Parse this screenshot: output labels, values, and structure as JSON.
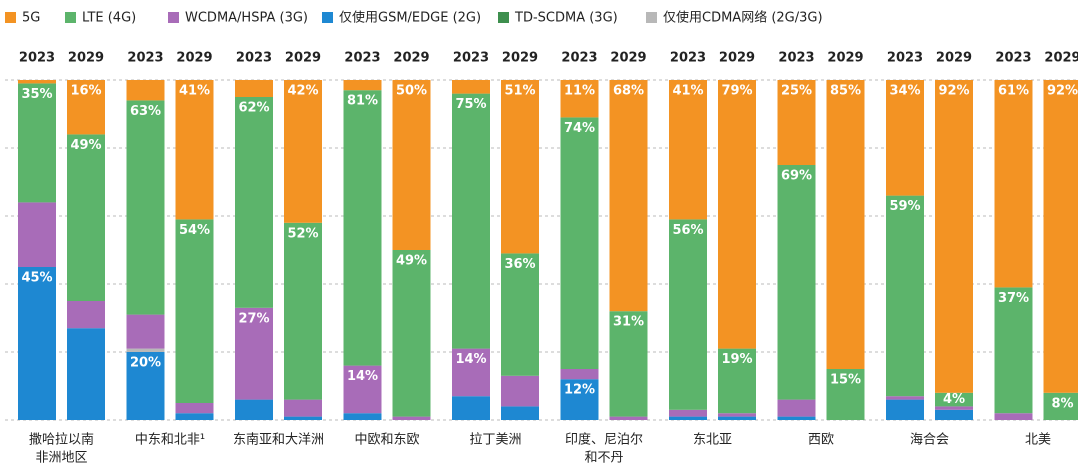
{
  "chart_data": {
    "type": "stacked-bar",
    "groups": [
      [
        "撒哈拉以南",
        "非洲地区"
      ],
      [
        "中东和北非¹"
      ],
      [
        "东南亚和大洋洲"
      ],
      [
        "中欧和东欧"
      ],
      [
        "拉丁美洲"
      ],
      [
        "印度、尼泊尔",
        "和不丹"
      ],
      [
        "东北亚"
      ],
      [
        "西欧"
      ],
      [
        "海合会"
      ],
      [
        "北美"
      ]
    ],
    "categories": [
      "2023",
      "2029",
      "2023",
      "2029",
      "2023",
      "2029",
      "2023",
      "2029",
      "2023",
      "2029",
      "2023",
      "2029",
      "2023",
      "2029",
      "2023",
      "2029",
      "2023",
      "2029",
      "2023",
      "2029"
    ],
    "ylim": [
      0,
      100
    ],
    "yticks": [
      0,
      20,
      40,
      60,
      80,
      100
    ],
    "grid": true,
    "series": [
      {
        "name": "5G",
        "color": "#f39323",
        "values": [
          1,
          16,
          6,
          41,
          5,
          42,
          3,
          50,
          4,
          51,
          11,
          68,
          41,
          79,
          25,
          85,
          34,
          92,
          61,
          92
        ],
        "value_labels": [
          null,
          "16%",
          null,
          "41%",
          null,
          "42%",
          null,
          "50%",
          null,
          "51%",
          "11%",
          "68%",
          "41%",
          "79%",
          "25%",
          "85%",
          "34%",
          "92%",
          "61%",
          "92%"
        ]
      },
      {
        "name": "LTE (4G)",
        "color": "#5cb46b",
        "values": [
          35,
          49,
          63,
          54,
          62,
          52,
          81,
          49,
          75,
          36,
          74,
          31,
          56,
          19,
          69,
          15,
          59,
          4,
          37,
          8
        ],
        "value_labels": [
          "35%",
          "49%",
          "63%",
          "54%",
          "62%",
          "52%",
          "81%",
          "49%",
          "75%",
          "36%",
          "74%",
          "31%",
          "56%",
          "19%",
          "69%",
          "15%",
          "59%",
          "4%",
          "37%",
          "8%"
        ]
      },
      {
        "name": "WCDMA/HSPA (3G)",
        "color": "#a86cb8",
        "values": [
          19,
          8,
          10,
          3,
          27,
          5,
          14,
          1,
          14,
          9,
          3,
          1,
          2,
          1,
          5,
          0,
          1,
          1,
          2,
          0
        ],
        "value_labels": [
          null,
          null,
          null,
          null,
          "27%",
          null,
          "14%",
          null,
          "14%",
          null,
          null,
          null,
          null,
          null,
          null,
          null,
          null,
          null,
          null,
          null
        ]
      },
      {
        "name": "仅使用GSM/EDGE (2G)",
        "color": "#1e88d2",
        "values": [
          45,
          27,
          20,
          2,
          6,
          1,
          2,
          0,
          7,
          4,
          12,
          0,
          1,
          1,
          1,
          0,
          6,
          3,
          0,
          0
        ],
        "value_labels": [
          "45%",
          null,
          "20%",
          null,
          null,
          null,
          null,
          null,
          null,
          null,
          "12%",
          null,
          null,
          null,
          null,
          null,
          null,
          null,
          null,
          null
        ]
      },
      {
        "name": "TD-SCDMA (3G)",
        "color": "#3e8f4e",
        "values": [
          0,
          0,
          0,
          0,
          0,
          0,
          0,
          0,
          0,
          0,
          0,
          0,
          0,
          0,
          0,
          0,
          0,
          0,
          0,
          0
        ]
      },
      {
        "name": "仅使用CDMA网络 (2G/3G)",
        "color": "#b8b8b8",
        "values": [
          0,
          0,
          1,
          0,
          0,
          0,
          0,
          0,
          0,
          0,
          0,
          0,
          0,
          0,
          0,
          0,
          0,
          0,
          0,
          0
        ]
      }
    ]
  }
}
